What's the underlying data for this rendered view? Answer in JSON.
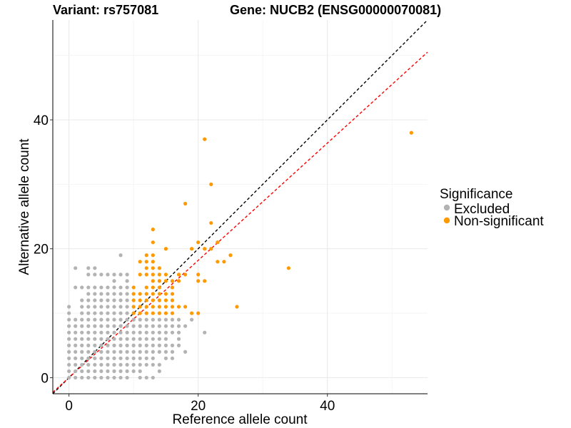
{
  "chart_data": {
    "type": "scatter",
    "title_left": "Variant: rs757081",
    "title_right": "Gene: NUCB2 (ENSG00000070081)",
    "xlabel": "Reference allele count",
    "ylabel": "Alternative allele count",
    "xlim": [
      -2.5,
      55.5
    ],
    "ylim": [
      -2.5,
      55.5
    ],
    "x_ticks": [
      0,
      20,
      40
    ],
    "y_ticks": [
      0,
      20,
      40
    ],
    "grid": true,
    "legend": {
      "title": "Significance",
      "position": "right",
      "entries": [
        {
          "label": "Excluded",
          "color": "#b3b3b3"
        },
        {
          "label": "Non-significant",
          "color": "#ff9900"
        }
      ]
    },
    "reference_lines": [
      {
        "name": "identity",
        "slope": 1.0,
        "intercept": 0,
        "color": "#000000",
        "style": "dashed"
      },
      {
        "name": "fit",
        "slope": 0.91,
        "intercept": 0,
        "color": "#ff0000",
        "style": "dashed"
      }
    ],
    "series": [
      {
        "name": "Excluded",
        "color": "#b3b3b3",
        "points": [
          [
            0,
            0
          ],
          [
            0,
            1
          ],
          [
            0,
            2
          ],
          [
            0,
            3
          ],
          [
            0,
            4
          ],
          [
            0,
            5
          ],
          [
            0,
            6
          ],
          [
            0,
            7
          ],
          [
            0,
            8
          ],
          [
            0,
            9
          ],
          [
            0,
            10
          ],
          [
            0,
            11
          ],
          [
            1,
            0
          ],
          [
            1,
            1
          ],
          [
            1,
            2
          ],
          [
            1,
            3
          ],
          [
            1,
            4
          ],
          [
            1,
            5
          ],
          [
            1,
            6
          ],
          [
            1,
            7
          ],
          [
            1,
            8
          ],
          [
            1,
            9
          ],
          [
            1,
            14
          ],
          [
            1,
            17
          ],
          [
            2,
            0
          ],
          [
            2,
            1
          ],
          [
            2,
            2
          ],
          [
            2,
            3
          ],
          [
            2,
            4
          ],
          [
            2,
            5
          ],
          [
            2,
            6
          ],
          [
            2,
            7
          ],
          [
            2,
            8
          ],
          [
            2,
            9
          ],
          [
            2,
            10
          ],
          [
            2,
            11
          ],
          [
            2,
            12
          ],
          [
            2,
            14
          ],
          [
            3,
            0
          ],
          [
            3,
            1
          ],
          [
            3,
            2
          ],
          [
            3,
            3
          ],
          [
            3,
            4
          ],
          [
            3,
            5
          ],
          [
            3,
            6
          ],
          [
            3,
            7
          ],
          [
            3,
            8
          ],
          [
            3,
            9
          ],
          [
            3,
            10
          ],
          [
            3,
            11
          ],
          [
            3,
            12
          ],
          [
            3,
            13
          ],
          [
            3,
            14
          ],
          [
            3,
            16
          ],
          [
            3,
            17
          ],
          [
            4,
            0
          ],
          [
            4,
            1
          ],
          [
            4,
            2
          ],
          [
            4,
            3
          ],
          [
            4,
            4
          ],
          [
            4,
            5
          ],
          [
            4,
            6
          ],
          [
            4,
            7
          ],
          [
            4,
            8
          ],
          [
            4,
            9
          ],
          [
            4,
            10
          ],
          [
            4,
            11
          ],
          [
            4,
            12
          ],
          [
            4,
            13
          ],
          [
            4,
            14
          ],
          [
            4,
            16
          ],
          [
            4,
            17
          ],
          [
            5,
            0
          ],
          [
            5,
            1
          ],
          [
            5,
            2
          ],
          [
            5,
            3
          ],
          [
            5,
            4
          ],
          [
            5,
            5
          ],
          [
            5,
            6
          ],
          [
            5,
            7
          ],
          [
            5,
            8
          ],
          [
            5,
            9
          ],
          [
            5,
            10
          ],
          [
            5,
            11
          ],
          [
            5,
            12
          ],
          [
            5,
            13
          ],
          [
            5,
            14
          ],
          [
            5,
            16
          ],
          [
            6,
            0
          ],
          [
            6,
            1
          ],
          [
            6,
            2
          ],
          [
            6,
            3
          ],
          [
            6,
            4
          ],
          [
            6,
            5
          ],
          [
            6,
            6
          ],
          [
            6,
            7
          ],
          [
            6,
            8
          ],
          [
            6,
            9
          ],
          [
            6,
            10
          ],
          [
            6,
            11
          ],
          [
            6,
            12
          ],
          [
            6,
            13
          ],
          [
            6,
            14
          ],
          [
            6,
            16
          ],
          [
            7,
            0
          ],
          [
            7,
            1
          ],
          [
            7,
            2
          ],
          [
            7,
            3
          ],
          [
            7,
            4
          ],
          [
            7,
            5
          ],
          [
            7,
            6
          ],
          [
            7,
            7
          ],
          [
            7,
            8
          ],
          [
            7,
            9
          ],
          [
            7,
            10
          ],
          [
            7,
            11
          ],
          [
            7,
            12
          ],
          [
            7,
            13
          ],
          [
            7,
            14
          ],
          [
            7,
            15
          ],
          [
            7,
            16
          ],
          [
            8,
            0
          ],
          [
            8,
            1
          ],
          [
            8,
            2
          ],
          [
            8,
            3
          ],
          [
            8,
            4
          ],
          [
            8,
            5
          ],
          [
            8,
            6
          ],
          [
            8,
            7
          ],
          [
            8,
            8
          ],
          [
            8,
            9
          ],
          [
            8,
            10
          ],
          [
            8,
            11
          ],
          [
            8,
            12
          ],
          [
            8,
            13
          ],
          [
            8,
            14
          ],
          [
            8,
            16
          ],
          [
            8,
            19
          ],
          [
            9,
            0
          ],
          [
            9,
            1
          ],
          [
            9,
            2
          ],
          [
            9,
            3
          ],
          [
            9,
            4
          ],
          [
            9,
            5
          ],
          [
            9,
            6
          ],
          [
            9,
            7
          ],
          [
            9,
            8
          ],
          [
            9,
            9
          ],
          [
            9,
            10
          ],
          [
            9,
            11
          ],
          [
            9,
            12
          ],
          [
            9,
            13
          ],
          [
            9,
            14
          ],
          [
            9,
            15
          ],
          [
            9,
            16
          ],
          [
            10,
            1
          ],
          [
            10,
            2
          ],
          [
            10,
            3
          ],
          [
            10,
            4
          ],
          [
            10,
            5
          ],
          [
            10,
            6
          ],
          [
            10,
            7
          ],
          [
            10,
            8
          ],
          [
            10,
            9
          ],
          [
            11,
            1
          ],
          [
            11,
            2
          ],
          [
            11,
            3
          ],
          [
            11,
            4
          ],
          [
            11,
            5
          ],
          [
            11,
            6
          ],
          [
            11,
            7
          ],
          [
            11,
            8
          ],
          [
            11,
            9
          ],
          [
            12,
            0
          ],
          [
            12,
            2
          ],
          [
            12,
            3
          ],
          [
            12,
            4
          ],
          [
            12,
            5
          ],
          [
            12,
            6
          ],
          [
            12,
            7
          ],
          [
            12,
            8
          ],
          [
            12,
            9
          ],
          [
            13,
            2
          ],
          [
            13,
            3
          ],
          [
            13,
            4
          ],
          [
            13,
            5
          ],
          [
            13,
            6
          ],
          [
            13,
            7
          ],
          [
            13,
            8
          ],
          [
            13,
            9
          ],
          [
            14,
            2
          ],
          [
            14,
            4
          ],
          [
            14,
            5
          ],
          [
            14,
            6
          ],
          [
            14,
            7
          ],
          [
            14,
            8
          ],
          [
            14,
            9
          ],
          [
            15,
            3
          ],
          [
            15,
            4
          ],
          [
            15,
            5
          ],
          [
            15,
            6
          ],
          [
            15,
            7
          ],
          [
            15,
            8
          ],
          [
            15,
            9
          ],
          [
            16,
            4
          ],
          [
            16,
            5
          ],
          [
            16,
            7
          ],
          [
            16,
            8
          ],
          [
            16,
            9
          ],
          [
            17,
            5
          ],
          [
            17,
            6
          ],
          [
            17,
            7
          ],
          [
            17,
            8
          ],
          [
            17,
            9
          ],
          [
            18,
            4
          ],
          [
            18,
            8
          ],
          [
            19,
            9
          ],
          [
            21,
            7
          ],
          [
            11,
            0
          ],
          [
            13,
            0
          ],
          [
            14,
            1
          ],
          [
            16,
            3
          ]
        ]
      },
      {
        "name": "Non-significant",
        "color": "#ff9900",
        "points": [
          [
            10,
            10
          ],
          [
            10,
            11
          ],
          [
            10,
            12
          ],
          [
            10,
            13
          ],
          [
            10,
            14
          ],
          [
            11,
            10
          ],
          [
            11,
            11
          ],
          [
            11,
            12
          ],
          [
            11,
            13
          ],
          [
            11,
            16
          ],
          [
            11,
            18
          ],
          [
            12,
            10
          ],
          [
            12,
            11
          ],
          [
            12,
            12
          ],
          [
            12,
            13
          ],
          [
            12,
            14
          ],
          [
            12,
            16
          ],
          [
            12,
            17
          ],
          [
            12,
            18
          ],
          [
            12,
            19
          ],
          [
            13,
            10
          ],
          [
            13,
            11
          ],
          [
            13,
            12
          ],
          [
            13,
            13
          ],
          [
            13,
            14
          ],
          [
            13,
            15
          ],
          [
            13,
            16
          ],
          [
            13,
            17
          ],
          [
            13,
            18
          ],
          [
            13,
            19
          ],
          [
            13,
            21
          ],
          [
            13,
            23
          ],
          [
            14,
            10
          ],
          [
            14,
            11
          ],
          [
            14,
            12
          ],
          [
            14,
            13
          ],
          [
            14,
            14
          ],
          [
            14,
            15
          ],
          [
            14,
            16
          ],
          [
            14,
            17
          ],
          [
            15,
            10
          ],
          [
            15,
            11
          ],
          [
            15,
            12
          ],
          [
            15,
            13
          ],
          [
            15,
            15
          ],
          [
            15,
            16
          ],
          [
            15,
            20
          ],
          [
            16,
            10
          ],
          [
            16,
            11
          ],
          [
            16,
            12
          ],
          [
            16,
            13
          ],
          [
            16,
            14
          ],
          [
            16,
            15
          ],
          [
            17,
            11
          ],
          [
            17,
            15
          ],
          [
            17,
            16
          ],
          [
            18,
            11
          ],
          [
            18,
            16
          ],
          [
            18,
            27
          ],
          [
            19,
            10
          ],
          [
            19,
            20
          ],
          [
            20,
            10
          ],
          [
            20,
            15
          ],
          [
            20,
            16
          ],
          [
            20,
            21
          ],
          [
            21,
            15
          ],
          [
            21,
            20
          ],
          [
            21,
            37
          ],
          [
            22,
            20
          ],
          [
            22,
            24
          ],
          [
            22,
            30
          ],
          [
            23,
            18
          ],
          [
            23,
            21
          ],
          [
            24,
            18
          ],
          [
            25,
            19
          ],
          [
            26,
            11
          ],
          [
            34,
            17
          ],
          [
            53,
            38
          ]
        ]
      }
    ]
  }
}
